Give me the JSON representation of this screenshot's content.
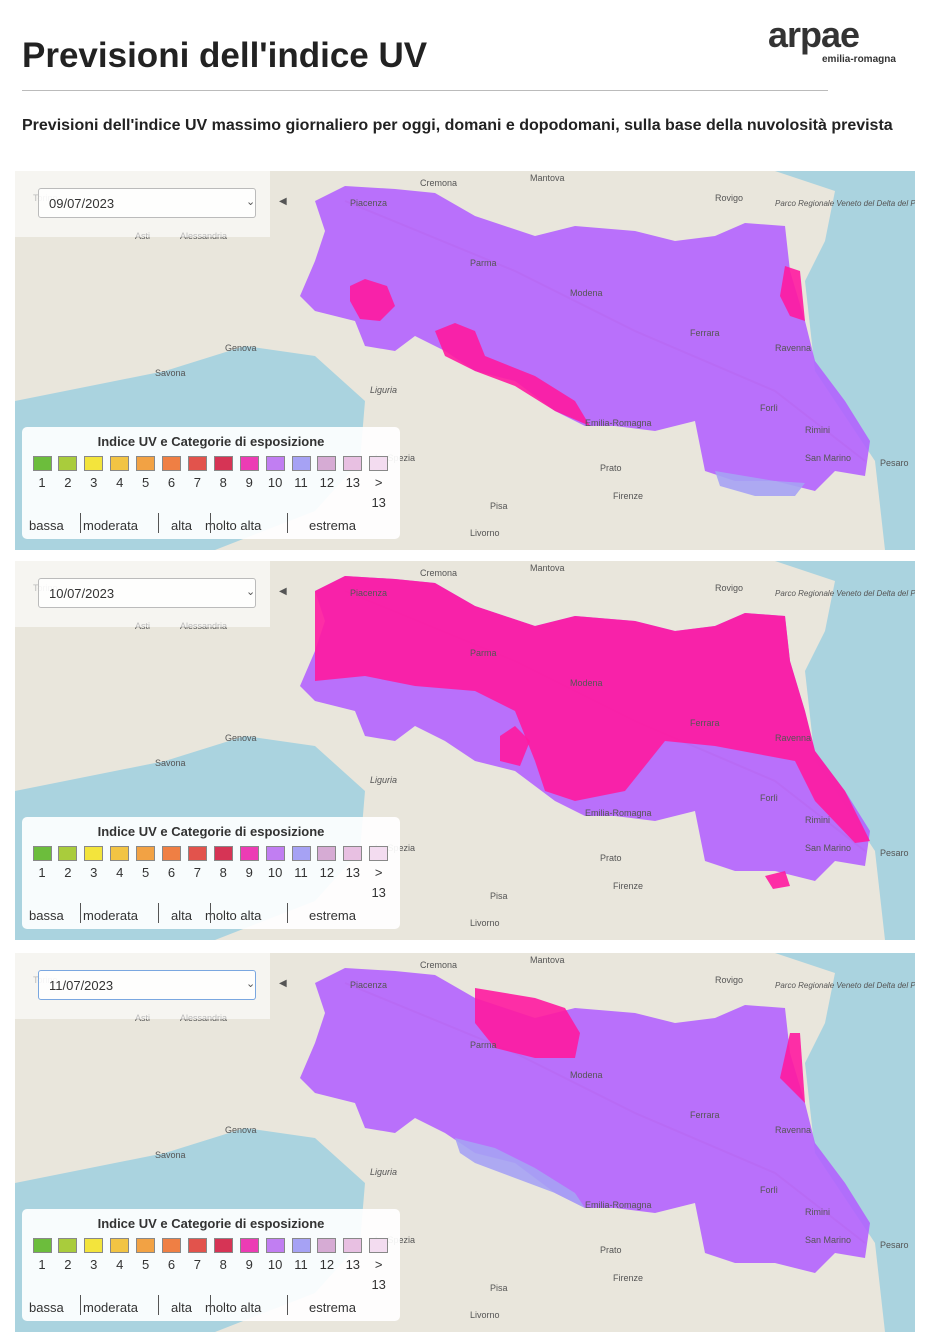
{
  "header": {
    "title": "Previsioni dell'indice UV",
    "logo": "arpae",
    "logo_sub": "emilia-romagna",
    "subtitle": "Previsioni dell'indice UV massimo giornaliero per oggi, domani e dopodomani, sulla base della nuvolosità prevista"
  },
  "legend": {
    "title": "Indice UV e Categorie di esposizione",
    "items": [
      {
        "label": "1",
        "color": "#6cbd3c"
      },
      {
        "label": "2",
        "color": "#a9cc3c"
      },
      {
        "label": "3",
        "color": "#f3e43c"
      },
      {
        "label": "4",
        "color": "#f2c444"
      },
      {
        "label": "5",
        "color": "#f2a244"
      },
      {
        "label": "6",
        "color": "#ef7f44"
      },
      {
        "label": "7",
        "color": "#e2534c"
      },
      {
        "label": "8",
        "color": "#d63455"
      },
      {
        "label": "9",
        "color": "#ec3cb4"
      },
      {
        "label": "10",
        "color": "#c17ef2"
      },
      {
        "label": "11",
        "color": "#a6a2f4"
      },
      {
        "label": "12",
        "color": "#d6abd4"
      },
      {
        "label": "13",
        "color": "#e8c0e2"
      },
      {
        "label": "> 13",
        "color": "#f3dcf0"
      }
    ],
    "categories": [
      "bassa",
      "moderata",
      "alta",
      "molto alta",
      "estrema"
    ]
  },
  "map_labels": [
    "Cremona",
    "Mantova",
    "Rovigo",
    "Parco Regionale Veneto del Delta del Po",
    "Piacenza",
    "Torino",
    "Asti",
    "Alessandria",
    "Parma",
    "Ferrara",
    "Modena",
    "Genova",
    "Savona",
    "Emilia-Romagna",
    "Ravenna",
    "Forlì",
    "Rimini",
    "San Marino",
    "Pesaro",
    "Prato",
    "Firenze",
    "Pisa",
    "Livorno",
    "La Spezia",
    "Liguria"
  ],
  "maps": [
    {
      "date": "09/07/2023"
    },
    {
      "date": "10/07/2023"
    },
    {
      "date": "11/07/2023"
    }
  ]
}
